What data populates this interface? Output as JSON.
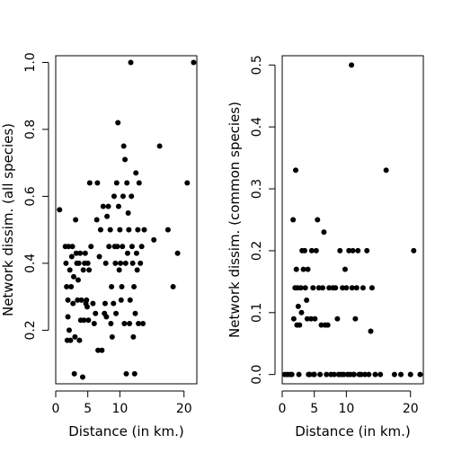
{
  "chart_data": [
    {
      "type": "scatter",
      "xlabel": "Distance (in km.)",
      "ylabel": "Network dissim. (all species)",
      "xlim": [
        0,
        22
      ],
      "ylim": [
        0.04,
        1.02
      ],
      "xticks": [
        0,
        5,
        10,
        20
      ],
      "yticks": [
        0.2,
        0.4,
        0.6,
        0.8,
        1.0
      ],
      "ytick_labels": [
        "0.2",
        "0.4",
        "0.6",
        "0.8",
        "1.0"
      ],
      "points": [
        [
          0.6,
          0.56
        ],
        [
          1.5,
          0.45
        ],
        [
          1.6,
          0.4
        ],
        [
          1.7,
          0.33
        ],
        [
          1.8,
          0.17
        ],
        [
          1.9,
          0.29
        ],
        [
          1.9,
          0.24
        ],
        [
          2.0,
          0.45
        ],
        [
          2.1,
          0.2
        ],
        [
          2.2,
          0.38
        ],
        [
          2.3,
          0.17
        ],
        [
          2.4,
          0.33
        ],
        [
          2.5,
          0.42
        ],
        [
          2.6,
          0.45
        ],
        [
          2.7,
          0.28
        ],
        [
          2.8,
          0.36
        ],
        [
          2.9,
          0.07
        ],
        [
          3.0,
          0.18
        ],
        [
          3.1,
          0.53
        ],
        [
          3.2,
          0.43
        ],
        [
          3.3,
          0.4
        ],
        [
          3.4,
          0.29
        ],
        [
          3.5,
          0.35
        ],
        [
          3.6,
          0.4
        ],
        [
          3.7,
          0.17
        ],
        [
          3.8,
          0.43
        ],
        [
          3.9,
          0.23
        ],
        [
          4.0,
          0.29
        ],
        [
          4.2,
          0.06
        ],
        [
          4.3,
          0.38
        ],
        [
          4.4,
          0.23
        ],
        [
          4.5,
          0.4
        ],
        [
          4.6,
          0.43
        ],
        [
          4.7,
          0.28
        ],
        [
          4.8,
          0.29
        ],
        [
          4.9,
          0.27
        ],
        [
          5.0,
          0.4
        ],
        [
          5.1,
          0.23
        ],
        [
          5.2,
          0.38
        ],
        [
          5.3,
          0.64
        ],
        [
          5.5,
          0.45
        ],
        [
          5.8,
          0.28
        ],
        [
          6.0,
          0.22
        ],
        [
          6.2,
          0.25
        ],
        [
          6.4,
          0.53
        ],
        [
          6.5,
          0.64
        ],
        [
          6.6,
          0.14
        ],
        [
          6.8,
          0.42
        ],
        [
          7.0,
          0.5
        ],
        [
          7.2,
          0.14
        ],
        [
          7.4,
          0.57
        ],
        [
          7.6,
          0.25
        ],
        [
          7.7,
          0.28
        ],
        [
          7.8,
          0.4
        ],
        [
          7.9,
          0.24
        ],
        [
          8.0,
          0.54
        ],
        [
          8.2,
          0.57
        ],
        [
          8.3,
          0.45
        ],
        [
          8.5,
          0.5
        ],
        [
          8.6,
          0.22
        ],
        [
          8.7,
          0.33
        ],
        [
          8.8,
          0.18
        ],
        [
          9.0,
          0.28
        ],
        [
          9.1,
          0.6
        ],
        [
          9.2,
          0.45
        ],
        [
          9.3,
          0.4
        ],
        [
          9.4,
          0.25
        ],
        [
          9.5,
          0.64
        ],
        [
          9.6,
          0.45
        ],
        [
          9.7,
          0.82
        ],
        [
          9.8,
          0.57
        ],
        [
          9.9,
          0.38
        ],
        [
          10.0,
          0.5
        ],
        [
          10.1,
          0.4
        ],
        [
          10.2,
          0.29
        ],
        [
          10.3,
          0.33
        ],
        [
          10.4,
          0.45
        ],
        [
          10.5,
          0.6
        ],
        [
          10.6,
          0.75
        ],
        [
          10.7,
          0.22
        ],
        [
          10.8,
          0.71
        ],
        [
          10.9,
          0.4
        ],
        [
          11.0,
          0.07
        ],
        [
          11.1,
          0.64
        ],
        [
          11.2,
          0.43
        ],
        [
          11.3,
          0.55
        ],
        [
          11.4,
          0.5
        ],
        [
          11.5,
          0.22
        ],
        [
          11.6,
          0.29
        ],
        [
          11.7,
          1.0
        ],
        [
          11.8,
          0.6
        ],
        [
          11.9,
          0.45
        ],
        [
          12.0,
          0.4
        ],
        [
          12.1,
          0.18
        ],
        [
          12.2,
          0.33
        ],
        [
          12.3,
          0.07
        ],
        [
          12.4,
          0.25
        ],
        [
          12.5,
          0.67
        ],
        [
          12.6,
          0.43
        ],
        [
          12.7,
          0.38
        ],
        [
          12.8,
          0.5
        ],
        [
          12.9,
          0.22
        ],
        [
          13.0,
          0.64
        ],
        [
          13.2,
          0.4
        ],
        [
          13.4,
          0.45
        ],
        [
          13.6,
          0.22
        ],
        [
          13.8,
          0.5
        ],
        [
          15.3,
          0.47
        ],
        [
          16.2,
          0.75
        ],
        [
          17.5,
          0.5
        ],
        [
          18.3,
          0.33
        ],
        [
          19.0,
          0.43
        ],
        [
          20.5,
          0.64
        ],
        [
          21.5,
          1.0
        ]
      ]
    },
    {
      "type": "scatter",
      "xlabel": "Distance (in km.)",
      "ylabel": "Network dissim. (common species)",
      "xlim": [
        0,
        22
      ],
      "ylim": [
        -0.015,
        0.515
      ],
      "xticks": [
        0,
        5,
        10,
        20
      ],
      "yticks": [
        0.0,
        0.1,
        0.2,
        0.3,
        0.4,
        0.5
      ],
      "ytick_labels": [
        "0.0",
        "0.1",
        "0.2",
        "0.3",
        "0.4",
        "0.5"
      ],
      "points": [
        [
          0.4,
          0.0
        ],
        [
          0.8,
          0.0
        ],
        [
          1.2,
          0.0
        ],
        [
          1.5,
          0.0
        ],
        [
          1.7,
          0.25
        ],
        [
          1.8,
          0.09
        ],
        [
          2.0,
          0.14
        ],
        [
          2.1,
          0.33
        ],
        [
          2.2,
          0.17
        ],
        [
          2.3,
          0.08
        ],
        [
          2.4,
          0.14
        ],
        [
          2.5,
          0.11
        ],
        [
          2.6,
          0.0
        ],
        [
          2.7,
          0.08
        ],
        [
          2.9,
          0.14
        ],
        [
          3.0,
          0.1
        ],
        [
          3.1,
          0.2
        ],
        [
          3.3,
          0.17
        ],
        [
          3.5,
          0.2
        ],
        [
          3.6,
          0.14
        ],
        [
          3.8,
          0.12
        ],
        [
          3.9,
          0.09
        ],
        [
          4.0,
          0.17
        ],
        [
          4.1,
          0.0
        ],
        [
          4.3,
          0.0
        ],
        [
          4.5,
          0.09
        ],
        [
          4.6,
          0.2
        ],
        [
          4.8,
          0.14
        ],
        [
          4.9,
          0.0
        ],
        [
          5.0,
          0.0
        ],
        [
          5.1,
          0.09
        ],
        [
          5.3,
          0.2
        ],
        [
          5.5,
          0.25
        ],
        [
          5.7,
          0.14
        ],
        [
          5.9,
          0.0
        ],
        [
          6.1,
          0.08
        ],
        [
          6.3,
          0.14
        ],
        [
          6.5,
          0.23
        ],
        [
          6.7,
          0.08
        ],
        [
          6.9,
          0.0
        ],
        [
          7.1,
          0.08
        ],
        [
          7.3,
          0.14
        ],
        [
          7.6,
          0.0
        ],
        [
          7.9,
          0.14
        ],
        [
          8.1,
          0.0
        ],
        [
          8.3,
          0.14
        ],
        [
          8.6,
          0.09
        ],
        [
          8.8,
          0.0
        ],
        [
          9.0,
          0.2
        ],
        [
          9.2,
          0.0
        ],
        [
          9.4,
          0.14
        ],
        [
          9.6,
          0.0
        ],
        [
          9.8,
          0.17
        ],
        [
          10.0,
          0.14
        ],
        [
          10.2,
          0.0
        ],
        [
          10.4,
          0.2
        ],
        [
          10.6,
          0.0
        ],
        [
          10.8,
          0.5
        ],
        [
          10.9,
          0.14
        ],
        [
          11.0,
          0.2
        ],
        [
          11.1,
          0.0
        ],
        [
          11.2,
          0.0
        ],
        [
          11.4,
          0.09
        ],
        [
          11.6,
          0.14
        ],
        [
          11.8,
          0.2
        ],
        [
          12.0,
          0.0
        ],
        [
          12.3,
          0.0
        ],
        [
          12.6,
          0.14
        ],
        [
          12.9,
          0.0
        ],
        [
          13.2,
          0.2
        ],
        [
          13.5,
          0.0
        ],
        [
          13.8,
          0.07
        ],
        [
          14.0,
          0.14
        ],
        [
          14.5,
          0.0
        ],
        [
          15.3,
          0.0
        ],
        [
          16.2,
          0.33
        ],
        [
          17.5,
          0.0
        ],
        [
          18.5,
          0.0
        ],
        [
          20.0,
          0.0
        ],
        [
          20.5,
          0.2
        ],
        [
          21.5,
          0.0
        ]
      ]
    }
  ]
}
